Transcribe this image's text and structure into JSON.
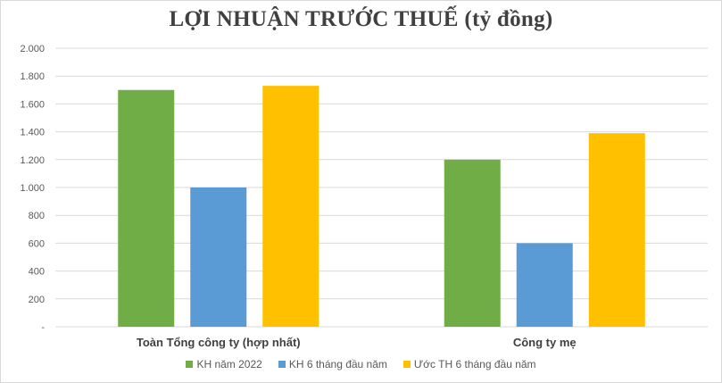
{
  "chart_data": {
    "type": "bar",
    "title": "LỢI NHUẬN TRƯỚC THUẾ (tỷ đồng)",
    "categories": [
      "Toàn Tổng công ty (hợp nhất)",
      "Công ty mẹ"
    ],
    "series": [
      {
        "name": "KH năm 2022",
        "values": [
          1700,
          1200
        ],
        "color": "#70ad47"
      },
      {
        "name": "KH 6 tháng đầu năm",
        "values": [
          1000,
          600
        ],
        "color": "#5b9bd5"
      },
      {
        "name": "Ước TH 6 tháng đầu năm",
        "values": [
          1730,
          1390
        ],
        "color": "#ffc000"
      }
    ],
    "ylim": [
      0,
      2000
    ],
    "yticks": [
      0,
      200,
      400,
      600,
      800,
      1000,
      1200,
      1400,
      1600,
      1800,
      2000
    ],
    "ytick_labels": [
      "-",
      "200",
      "400",
      "600",
      "800",
      "1.000",
      "1.200",
      "1.400",
      "1.600",
      "1.800",
      "2.000"
    ],
    "xlabel": "",
    "ylabel": "",
    "grid": true,
    "legend_position": "bottom",
    "gridline_color": "#d9d9d9"
  }
}
